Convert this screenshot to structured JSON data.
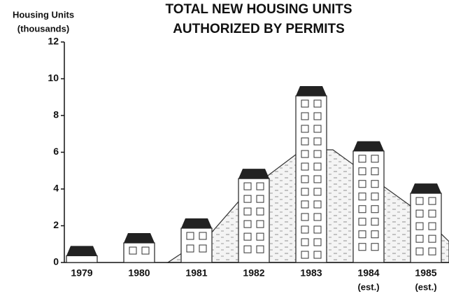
{
  "chart_data": {
    "type": "pictogram-bar",
    "title_lines": [
      "TOTAL NEW HOUSING UNITS",
      "AUTHORIZED BY PERMITS"
    ],
    "y_label_lines": [
      "Housing Units",
      "(thousands)"
    ],
    "categories": [
      "1979",
      "1980",
      "1981",
      "1982",
      "1983",
      "1984",
      "1985"
    ],
    "category_notes": [
      null,
      null,
      null,
      null,
      null,
      "(est.)",
      "(est.)"
    ],
    "values": [
      0.9,
      1.6,
      2.4,
      5.1,
      9.6,
      6.6,
      4.3
    ],
    "ylim": [
      0,
      12
    ],
    "yticks": [
      0,
      2,
      4,
      6,
      8,
      10,
      12
    ],
    "color": "#222222"
  }
}
